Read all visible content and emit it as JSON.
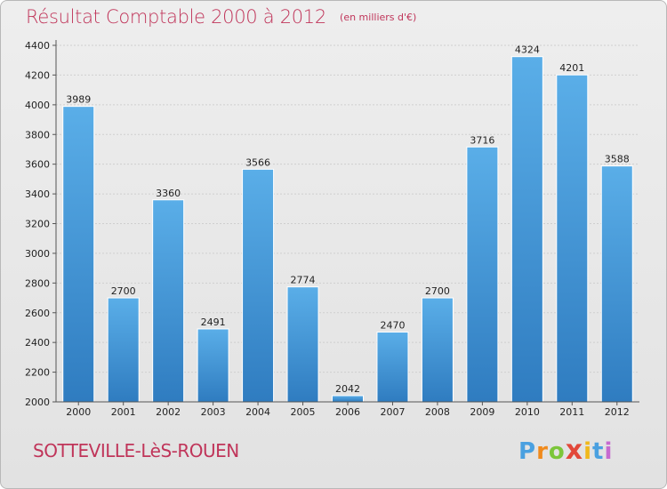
{
  "chart_data": {
    "type": "bar",
    "title": "Résultat Comptable 2000 à 2012",
    "unit_note": "(en milliers d'€)",
    "categories": [
      "2000",
      "2001",
      "2002",
      "2003",
      "2004",
      "2005",
      "2006",
      "2007",
      "2008",
      "2009",
      "2010",
      "2011",
      "2012"
    ],
    "values": [
      3989,
      2700,
      3360,
      2491,
      3566,
      2774,
      2042,
      2470,
      2700,
      3716,
      4324,
      4201,
      3588
    ],
    "ylim": [
      2000,
      4400
    ],
    "yticks": [
      2000,
      2200,
      2400,
      2600,
      2800,
      3000,
      3200,
      3400,
      3600,
      3800,
      4000,
      4200,
      4400
    ],
    "grid": true,
    "xlabel": "",
    "ylabel": ""
  },
  "footer": {
    "city": "SOTTEVILLE-LèS-ROUEN",
    "brand_letters": [
      "P",
      "r",
      "o",
      "x",
      "i",
      "t",
      "i"
    ],
    "brand_colors": [
      "#4aa0e0",
      "#f08a1c",
      "#7cc63a",
      "#e2483a",
      "#f0b81c",
      "#4aa0e0",
      "#c66ad0"
    ]
  },
  "colors": {
    "title": "#c0355a",
    "bar_top": "#5aaee8",
    "bar_bottom": "#2f7cc0"
  }
}
